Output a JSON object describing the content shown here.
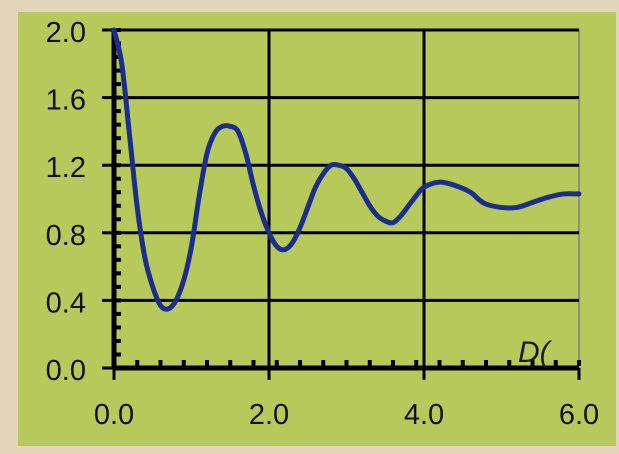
{
  "chart_data": {
    "type": "line",
    "title": "",
    "xlabel": "D(",
    "ylabel": "",
    "xlim": [
      0,
      6
    ],
    "ylim": [
      0,
      2
    ],
    "x_ticks": [
      "0.0",
      "2.0",
      "4.0",
      "6.0"
    ],
    "y_ticks": [
      "0.0",
      "0.4",
      "0.8",
      "1.2",
      "1.6",
      "2.0"
    ],
    "grid": true,
    "legend": "none",
    "colors": {
      "outer_background": "#e3d6b8",
      "plot_background": "#b7c95a",
      "line": "#1c2e8c",
      "grid": "#000000"
    },
    "series": [
      {
        "values_x": [
          0.0,
          0.1,
          0.2,
          0.3,
          0.4,
          0.5,
          0.6,
          0.7,
          0.8,
          0.9,
          1.0,
          1.1,
          1.2,
          1.3,
          1.4,
          1.5,
          1.6,
          1.7,
          1.8,
          1.9,
          2.0,
          2.1,
          2.2,
          2.3,
          2.4,
          2.5,
          2.6,
          2.7,
          2.8,
          2.9,
          3.0,
          3.1,
          3.2,
          3.3,
          3.4,
          3.5,
          3.6,
          3.7,
          3.8,
          3.9,
          4.0,
          4.2,
          4.4,
          4.6,
          4.7,
          4.8,
          5.0,
          5.2,
          5.4,
          5.6,
          5.8,
          6.0
        ],
        "values_y": [
          2.0,
          1.8,
          1.38,
          0.95,
          0.65,
          0.48,
          0.37,
          0.35,
          0.4,
          0.52,
          0.72,
          1.02,
          1.27,
          1.39,
          1.43,
          1.43,
          1.4,
          1.27,
          1.08,
          0.92,
          0.8,
          0.72,
          0.7,
          0.74,
          0.83,
          0.95,
          1.07,
          1.15,
          1.2,
          1.2,
          1.18,
          1.12,
          1.04,
          0.96,
          0.9,
          0.87,
          0.86,
          0.9,
          0.96,
          1.02,
          1.07,
          1.1,
          1.08,
          1.04,
          1.0,
          0.97,
          0.95,
          0.95,
          0.98,
          1.01,
          1.03,
          1.03
        ]
      }
    ]
  }
}
